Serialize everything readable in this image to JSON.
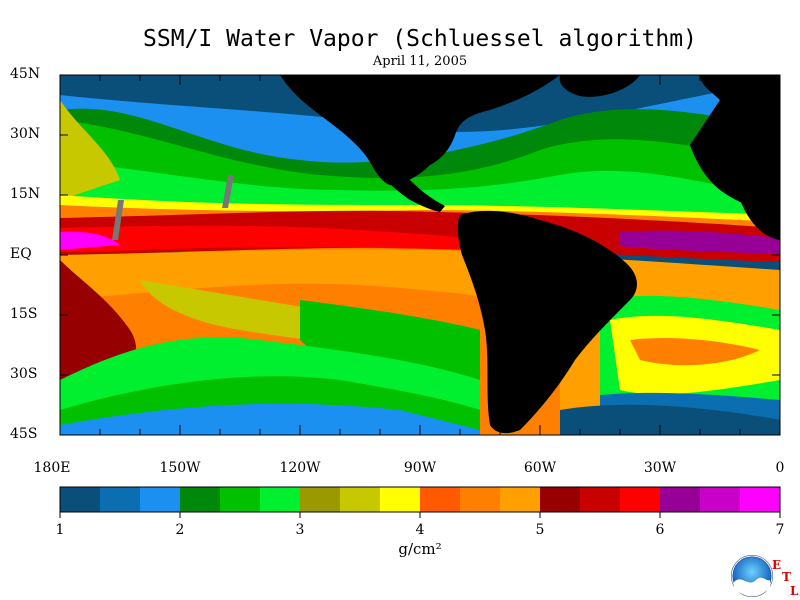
{
  "title": "SSM/I Water Vapor (Schluessel algorithm)",
  "subtitle": "April 11, 2005",
  "map": {
    "lat_labels": [
      "45N",
      "30N",
      "15N",
      "EQ",
      "15S",
      "30S",
      "45S"
    ],
    "lon_labels": [
      "180E",
      "150W",
      "120W",
      "90W",
      "60W",
      "30W",
      "0"
    ],
    "lat_range": [
      -45,
      45
    ],
    "lon_range": [
      -180,
      0
    ],
    "land_color": "#000000",
    "missing_color": "#777777"
  },
  "colorbar": {
    "min": 1,
    "max": 7,
    "tick_labels": [
      "1",
      "2",
      "3",
      "4",
      "5",
      "6",
      "7"
    ],
    "units": "g/cm²",
    "colors": [
      "#0a4e7a",
      "#0b6eb0",
      "#1c90f0",
      "#00880a",
      "#00c000",
      "#00f030",
      "#9a9a00",
      "#c8c800",
      "#ffff00",
      "#ff5a00",
      "#ff8000",
      "#ffa000",
      "#960000",
      "#c80000",
      "#ff0000",
      "#960096",
      "#c800c8",
      "#ff00ff"
    ]
  },
  "logo": {
    "name": "NOAA",
    "lab_letters": [
      "E",
      "T",
      "L"
    ]
  }
}
